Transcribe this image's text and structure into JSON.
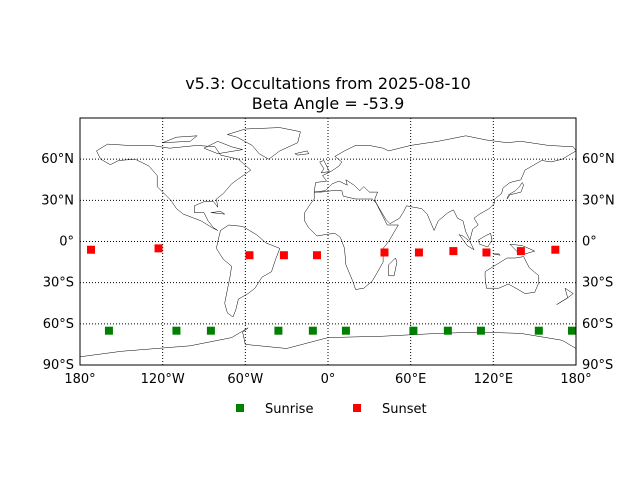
{
  "chart_data": {
    "type": "scatter",
    "title": "v5.3: Occultations from 2025-08-10",
    "subtitle": "Beta Angle = -53.9",
    "xlabel": "",
    "ylabel": "",
    "xlim": [
      -180,
      180
    ],
    "ylim": [
      -90,
      90
    ],
    "x_ticks": [
      -180,
      -120,
      -60,
      0,
      60,
      120,
      180
    ],
    "x_tick_labels": [
      "180°",
      "120°W",
      "60°W",
      "0°",
      "60°E",
      "120°E",
      "180°"
    ],
    "y_ticks": [
      60,
      30,
      0,
      -30,
      -60,
      -90
    ],
    "y_tick_labels": [
      "60°N",
      "30°N",
      "0°",
      "30°S",
      "60°S",
      "90°S"
    ],
    "grid": true,
    "legend_position": "bottom-center",
    "background": "world coastline and country borders map",
    "series": [
      {
        "name": "Sunrise",
        "color": "#008000",
        "marker": "square",
        "x": [
          -159,
          -110,
          -85,
          -36,
          -11,
          13,
          62,
          87,
          111,
          153,
          178
        ],
        "y": [
          -65,
          -65,
          -65,
          -65,
          -65,
          -65,
          -65,
          -65,
          -65,
          -65,
          -65
        ]
      },
      {
        "name": "Sunset",
        "color": "#ff0000",
        "marker": "square",
        "x": [
          -172,
          -123,
          -57,
          -32,
          -8,
          41,
          66,
          91,
          115,
          140,
          165
        ],
        "y": [
          -6,
          -5,
          -10,
          -10,
          -10,
          -8,
          -8,
          -7,
          -8,
          -7,
          -6
        ]
      }
    ]
  }
}
